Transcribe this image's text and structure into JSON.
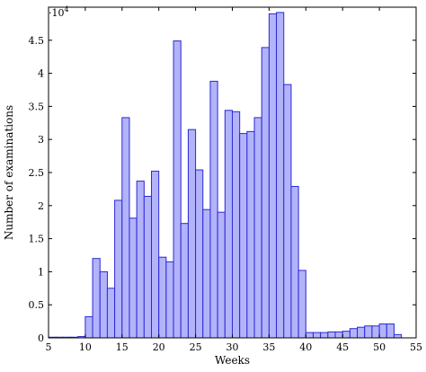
{
  "chart_data": {
    "type": "bar",
    "xlabel": "Weeks",
    "ylabel": "Number of examinations",
    "scale_label": "·10",
    "scale_exponent": "4",
    "xlim": [
      5,
      55
    ],
    "ylim": [
      0,
      50000
    ],
    "bin_width": 1,
    "grid": false,
    "x_ticks": [
      5,
      10,
      15,
      20,
      25,
      30,
      35,
      40,
      45,
      50,
      55
    ],
    "x_tick_labels": [
      "5",
      "10",
      "15",
      "20",
      "25",
      "30",
      "35",
      "40",
      "45",
      "50",
      "55"
    ],
    "y_ticks": [
      0,
      5000,
      10000,
      15000,
      20000,
      25000,
      30000,
      35000,
      40000,
      45000
    ],
    "y_tick_labels": [
      "0",
      "0.5",
      "1",
      "1.5",
      "2",
      "2.5",
      "3",
      "3.5",
      "4",
      "4.5"
    ],
    "bins": [
      5,
      6,
      7,
      8,
      9,
      10,
      11,
      12,
      13,
      14,
      15,
      16,
      17,
      18,
      19,
      20,
      21,
      22,
      23,
      24,
      25,
      26,
      27,
      28,
      29,
      30,
      31,
      32,
      33,
      34,
      35,
      36,
      37,
      38,
      39,
      40,
      41,
      42,
      43,
      44,
      45,
      46,
      47,
      48,
      49,
      50,
      51,
      52
    ],
    "values": [
      100,
      100,
      100,
      100,
      200,
      3200,
      12000,
      10000,
      7500,
      20800,
      33300,
      18100,
      23700,
      21400,
      25200,
      12200,
      11500,
      44900,
      17300,
      31500,
      25400,
      19400,
      38800,
      19000,
      34400,
      34200,
      30900,
      31200,
      33300,
      43900,
      49000,
      49200,
      38300,
      22900,
      10200,
      800,
      800,
      800,
      900,
      900,
      1000,
      1400,
      1600,
      1800,
      1800,
      2100,
      2100,
      500
    ]
  }
}
